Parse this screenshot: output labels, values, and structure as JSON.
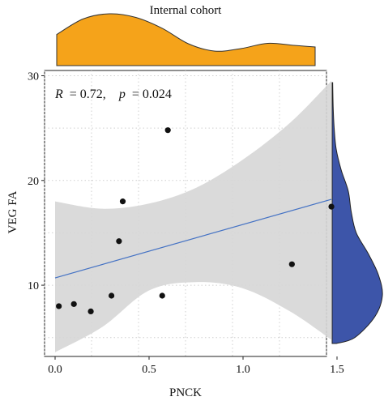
{
  "chart_data": {
    "type": "scatter",
    "title": "Internal cohort",
    "xlabel": "PNCK",
    "ylabel": "VEG FA",
    "xlim": [
      0.0,
      1.5
    ],
    "ylim": [
      3.2,
      30.5
    ],
    "x_ticks": [
      0.0,
      0.5,
      1.0,
      1.5
    ],
    "x_tick_labels": [
      "0.0",
      "0.5",
      "1.0",
      "1.5"
    ],
    "y_ticks": [
      10,
      20,
      30
    ],
    "y_tick_labels": [
      "10",
      "20",
      "30"
    ],
    "grid": true,
    "annotation": {
      "r_label": "R",
      "r_value": "= 0.72,",
      "p_label": "p",
      "p_value": "= 0.024"
    },
    "points": [
      {
        "x": 0.02,
        "y": 8.0
      },
      {
        "x": 0.1,
        "y": 8.2
      },
      {
        "x": 0.19,
        "y": 7.5
      },
      {
        "x": 0.3,
        "y": 9.0
      },
      {
        "x": 0.34,
        "y": 14.2
      },
      {
        "x": 0.36,
        "y": 18.0
      },
      {
        "x": 0.57,
        "y": 9.0
      },
      {
        "x": 0.6,
        "y": 24.8
      },
      {
        "x": 1.26,
        "y": 12.0
      },
      {
        "x": 1.47,
        "y": 17.5
      }
    ],
    "regression": {
      "x": [
        0.0,
        1.47
      ],
      "y": [
        10.7,
        18.2
      ]
    },
    "confidence_band": {
      "x": [
        0.0,
        0.25,
        0.5,
        0.75,
        1.0,
        1.25,
        1.47
      ],
      "upper": [
        18.0,
        17.3,
        17.8,
        19.3,
        22.0,
        25.5,
        29.5
      ],
      "lower": [
        3.6,
        6.0,
        9.5,
        10.3,
        9.7,
        7.5,
        4.8
      ]
    },
    "top_density": {
      "x": [
        0.0,
        0.15,
        0.3,
        0.45,
        0.6,
        0.75,
        0.9,
        1.05,
        1.2,
        1.35,
        1.47
      ],
      "density": [
        0.6,
        0.9,
        1.0,
        0.93,
        0.72,
        0.42,
        0.28,
        0.33,
        0.43,
        0.39,
        0.36
      ]
    },
    "right_density": {
      "y": [
        3.2,
        5,
        7,
        9,
        11,
        13,
        15,
        17,
        19,
        21,
        23,
        25,
        27,
        29.5
      ],
      "density": [
        0.08,
        0.45,
        0.85,
        1.0,
        0.92,
        0.72,
        0.48,
        0.38,
        0.32,
        0.18,
        0.08,
        0.04,
        0.02,
        0.01
      ]
    },
    "colors": {
      "points": "#111111",
      "line": "#4472c4",
      "band": "#d6d6d6",
      "top_density": "#f5a31a",
      "right_density": "#3d55a9",
      "grid": "#cfcfcf"
    }
  }
}
